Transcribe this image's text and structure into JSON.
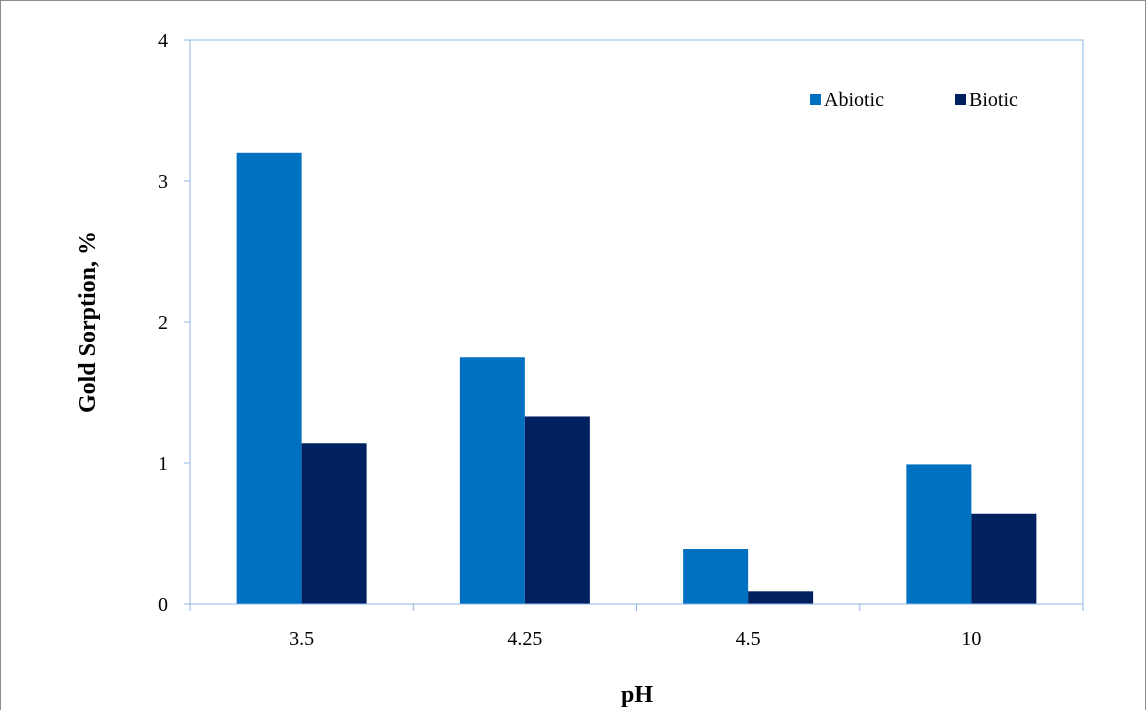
{
  "chart_data": {
    "type": "bar",
    "categories": [
      "3.5",
      "4.25",
      "4.5",
      "10"
    ],
    "series": [
      {
        "name": "Abiotic",
        "values": [
          3.2,
          1.75,
          0.39,
          0.99
        ],
        "color": "#0070C0"
      },
      {
        "name": "Biotic",
        "values": [
          1.14,
          1.33,
          0.09,
          0.64
        ],
        "color": "#002060"
      }
    ],
    "xlabel": "pH",
    "ylabel": "Gold Sorption, %",
    "ylim": [
      0,
      4
    ],
    "yticks": [
      "0",
      "1",
      "2",
      "3",
      "4"
    ],
    "grid": false,
    "legend_position": "top-right",
    "axis_color": "#8EB4E3"
  }
}
